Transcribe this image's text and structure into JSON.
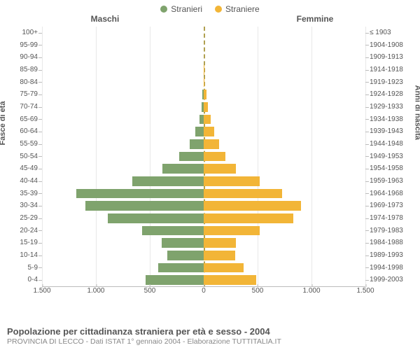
{
  "legend": {
    "male": {
      "label": "Stranieri",
      "color": "#7fa36d"
    },
    "female": {
      "label": "Straniere",
      "color": "#f2b537"
    }
  },
  "headers": {
    "left": "Maschi",
    "right": "Femmine"
  },
  "axis_titles": {
    "left": "Fasce di età",
    "right": "Anni di nascita"
  },
  "chart": {
    "type": "population-pyramid",
    "x_max": 1500,
    "x_ticks_left": [
      1500,
      1000,
      500,
      0
    ],
    "x_ticks_right": [
      0,
      500,
      1000,
      1500
    ],
    "x_tick_labels_left": [
      "1.500",
      "1.000",
      "500",
      "0"
    ],
    "x_tick_labels_right": [
      "0",
      "500",
      "1.000",
      "1.500"
    ],
    "grid_color": "#e8e8e8",
    "centerline_color": "#b0a050",
    "male_color": "#7fa36d",
    "female_color": "#f2b537",
    "background": "#ffffff",
    "rows": [
      {
        "age": "100+",
        "birth": "≤ 1903",
        "m": 0,
        "f": 0
      },
      {
        "age": "95-99",
        "birth": "1904-1908",
        "m": 0,
        "f": 0
      },
      {
        "age": "90-94",
        "birth": "1909-1913",
        "m": 0,
        "f": 0
      },
      {
        "age": "85-89",
        "birth": "1914-1918",
        "m": 0,
        "f": 3
      },
      {
        "age": "80-84",
        "birth": "1919-1923",
        "m": 3,
        "f": 8
      },
      {
        "age": "75-79",
        "birth": "1924-1928",
        "m": 10,
        "f": 25
      },
      {
        "age": "70-74",
        "birth": "1929-1933",
        "m": 20,
        "f": 40
      },
      {
        "age": "65-69",
        "birth": "1934-1938",
        "m": 40,
        "f": 65
      },
      {
        "age": "60-64",
        "birth": "1939-1943",
        "m": 80,
        "f": 100
      },
      {
        "age": "55-59",
        "birth": "1944-1948",
        "m": 130,
        "f": 140
      },
      {
        "age": "50-54",
        "birth": "1949-1953",
        "m": 230,
        "f": 200
      },
      {
        "age": "45-49",
        "birth": "1954-1958",
        "m": 380,
        "f": 300
      },
      {
        "age": "40-44",
        "birth": "1959-1963",
        "m": 660,
        "f": 520
      },
      {
        "age": "35-39",
        "birth": "1964-1968",
        "m": 1180,
        "f": 730
      },
      {
        "age": "30-34",
        "birth": "1969-1973",
        "m": 1100,
        "f": 900
      },
      {
        "age": "25-29",
        "birth": "1974-1978",
        "m": 890,
        "f": 830
      },
      {
        "age": "20-24",
        "birth": "1979-1983",
        "m": 570,
        "f": 520
      },
      {
        "age": "15-19",
        "birth": "1984-1988",
        "m": 390,
        "f": 300
      },
      {
        "age": "10-14",
        "birth": "1989-1993",
        "m": 340,
        "f": 290
      },
      {
        "age": "5-9",
        "birth": "1994-1998",
        "m": 420,
        "f": 370
      },
      {
        "age": "0-4",
        "birth": "1999-2003",
        "m": 540,
        "f": 490
      }
    ]
  },
  "footer": {
    "title": "Popolazione per cittadinanza straniera per età e sesso - 2004",
    "subtitle": "PROVINCIA DI LECCO - Dati ISTAT 1° gennaio 2004 - Elaborazione TUTTITALIA.IT"
  }
}
